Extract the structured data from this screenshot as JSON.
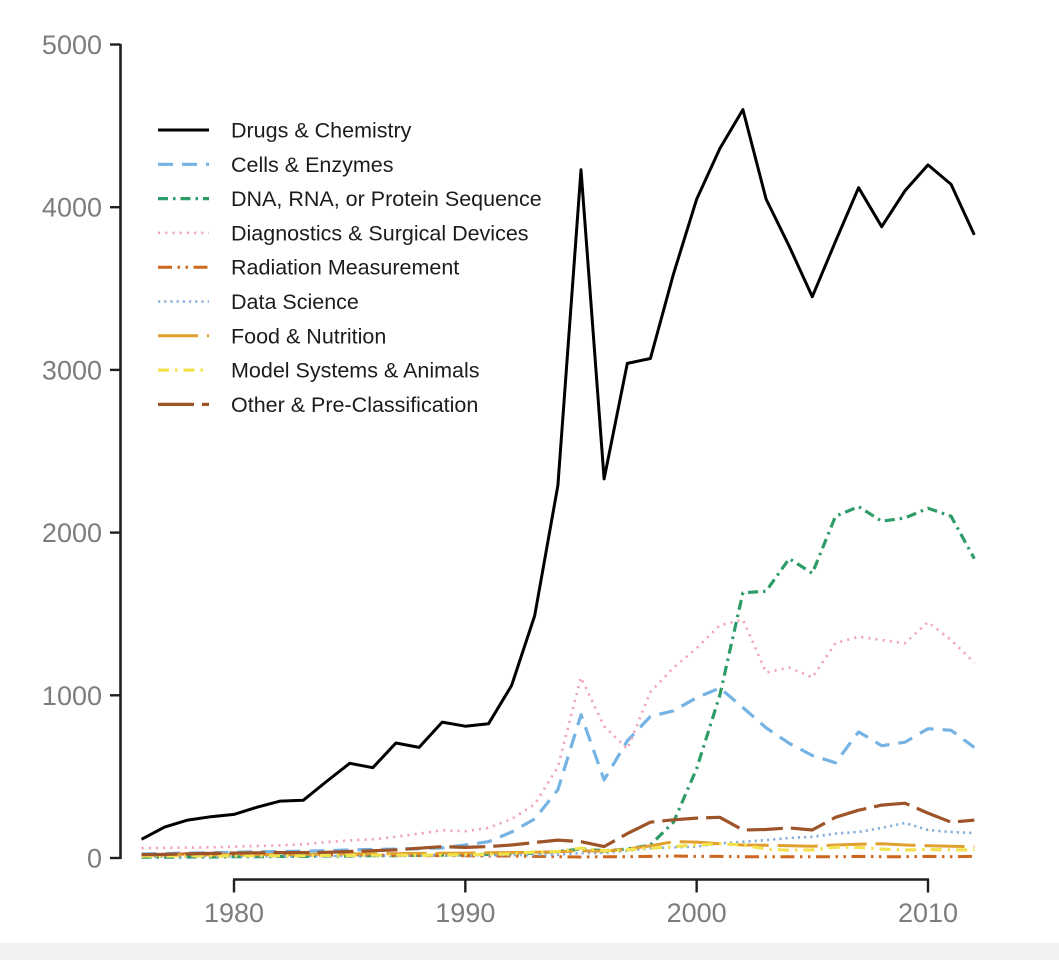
{
  "figure": {
    "background": "#ffffff",
    "bottom_strip_color": "#f2f2f2",
    "axis_color": "#1f1f1f",
    "tick_label_color": "#7d7d7d",
    "legend_text_color": "#1c1c1c"
  },
  "chart_data": {
    "type": "line",
    "title": "",
    "subtitle": "",
    "xlabel": "",
    "ylabel": "",
    "xlim": [
      1976,
      2012
    ],
    "ylim": [
      0,
      5000
    ],
    "xticks": [
      1980,
      1990,
      2000,
      2010
    ],
    "yticks": [
      0,
      1000,
      2000,
      3000,
      4000,
      5000
    ],
    "grid": false,
    "legend_position": "top-left",
    "x": [
      1976,
      1977,
      1978,
      1979,
      1980,
      1981,
      1982,
      1983,
      1984,
      1985,
      1986,
      1987,
      1988,
      1989,
      1990,
      1991,
      1992,
      1993,
      1994,
      1995,
      1996,
      1997,
      1998,
      1999,
      2000,
      2001,
      2002,
      2003,
      2004,
      2005,
      2006,
      2007,
      2008,
      2009,
      2010,
      2011,
      2012
    ],
    "series": [
      {
        "name": "Drugs & Chemistry",
        "color": "#000000",
        "dash": "",
        "width": 3,
        "values": [
          115,
          190,
          233,
          254,
          268,
          312,
          350,
          355,
          470,
          582,
          555,
          707,
          680,
          835,
          810,
          825,
          1060,
          1490,
          2290,
          4230,
          2330,
          3040,
          3070,
          3590,
          4050,
          4360,
          4600,
          4050,
          3760,
          3450,
          3790,
          4120,
          3880,
          4100,
          4260,
          4140,
          3830
        ]
      },
      {
        "name": "Cells & Enzymes",
        "color": "#74b3e4",
        "dash": "15 9",
        "width": 3.2,
        "values": [
          25,
          27,
          30,
          32,
          35,
          38,
          40,
          42,
          45,
          50,
          52,
          55,
          58,
          62,
          80,
          100,
          160,
          240,
          420,
          880,
          480,
          720,
          870,
          905,
          985,
          1045,
          925,
          800,
          705,
          630,
          585,
          775,
          690,
          712,
          795,
          785,
          680
        ]
      },
      {
        "name": "DNA, RNA, or Protein Sequence",
        "color": "#2e9c66",
        "dash": "10 5 2.5 5",
        "width": 3.2,
        "values": [
          5,
          5,
          6,
          6,
          8,
          8,
          10,
          10,
          12,
          12,
          14,
          15,
          16,
          18,
          20,
          22,
          25,
          30,
          40,
          55,
          45,
          55,
          80,
          220,
          550,
          1000,
          1630,
          1640,
          1840,
          1750,
          2100,
          2160,
          2070,
          2090,
          2150,
          2100,
          1840
        ]
      },
      {
        "name": "Diagnostics & Surgical Devices",
        "color": "#f0a6b6",
        "dash": "2.2 5",
        "width": 2.6,
        "values": [
          60,
          62,
          64,
          66,
          70,
          74,
          78,
          84,
          98,
          108,
          115,
          130,
          150,
          170,
          165,
          185,
          240,
          330,
          560,
          1110,
          810,
          670,
          1020,
          1170,
          1290,
          1430,
          1465,
          1140,
          1170,
          1110,
          1320,
          1360,
          1340,
          1320,
          1450,
          1340,
          1200
        ]
      },
      {
        "name": "Radiation Measurement",
        "color": "#cd671f",
        "dash": "14 5.5 2.5 5.5 2.5 5.5",
        "width": 3,
        "values": [
          20,
          22,
          25,
          24,
          22,
          20,
          20,
          18,
          18,
          20,
          18,
          16,
          15,
          15,
          14,
          12,
          12,
          10,
          8,
          6,
          8,
          8,
          10,
          12,
          10,
          10,
          8,
          8,
          8,
          8,
          8,
          10,
          8,
          8,
          10,
          8,
          10
        ]
      },
      {
        "name": "Data Science",
        "color": "#85aedb",
        "dash": "2.2 4",
        "width": 2.6,
        "values": [
          8,
          8,
          9,
          9,
          10,
          10,
          11,
          11,
          12,
          12,
          13,
          13,
          14,
          14,
          15,
          16,
          18,
          18,
          20,
          30,
          30,
          45,
          60,
          65,
          70,
          90,
          100,
          110,
          123,
          130,
          150,
          160,
          185,
          215,
          172,
          160,
          153
        ]
      },
      {
        "name": "Food & Nutrition",
        "color": "#e09f2f",
        "dash": "40 9",
        "width": 3,
        "values": [
          18,
          18,
          19,
          19,
          20,
          21,
          22,
          23,
          24,
          25,
          26,
          27,
          28,
          29,
          30,
          32,
          33,
          35,
          38,
          45,
          42,
          55,
          75,
          100,
          98,
          88,
          80,
          78,
          75,
          72,
          80,
          85,
          88,
          80,
          75,
          72,
          70
        ]
      },
      {
        "name": "Model Systems & Animals",
        "color": "#f2e34e",
        "dash": "11 6 2.5 6",
        "width": 3.2,
        "values": [
          12,
          12,
          13,
          13,
          14,
          14,
          15,
          15,
          16,
          16,
          17,
          17,
          18,
          18,
          20,
          22,
          25,
          37,
          40,
          60,
          45,
          50,
          60,
          70,
          80,
          88,
          80,
          55,
          48,
          50,
          67,
          65,
          55,
          49,
          52,
          50,
          50
        ]
      },
      {
        "name": "Other & Pre-Classification",
        "color": "#9e5429",
        "dash": "36 8",
        "width": 3.2,
        "values": [
          20,
          22,
          25,
          28,
          30,
          32,
          33,
          33,
          35,
          40,
          45,
          50,
          60,
          70,
          65,
          70,
          80,
          95,
          110,
          100,
          70,
          150,
          220,
          235,
          245,
          250,
          172,
          175,
          185,
          172,
          250,
          294,
          325,
          337,
          276,
          220,
          233
        ]
      }
    ]
  }
}
